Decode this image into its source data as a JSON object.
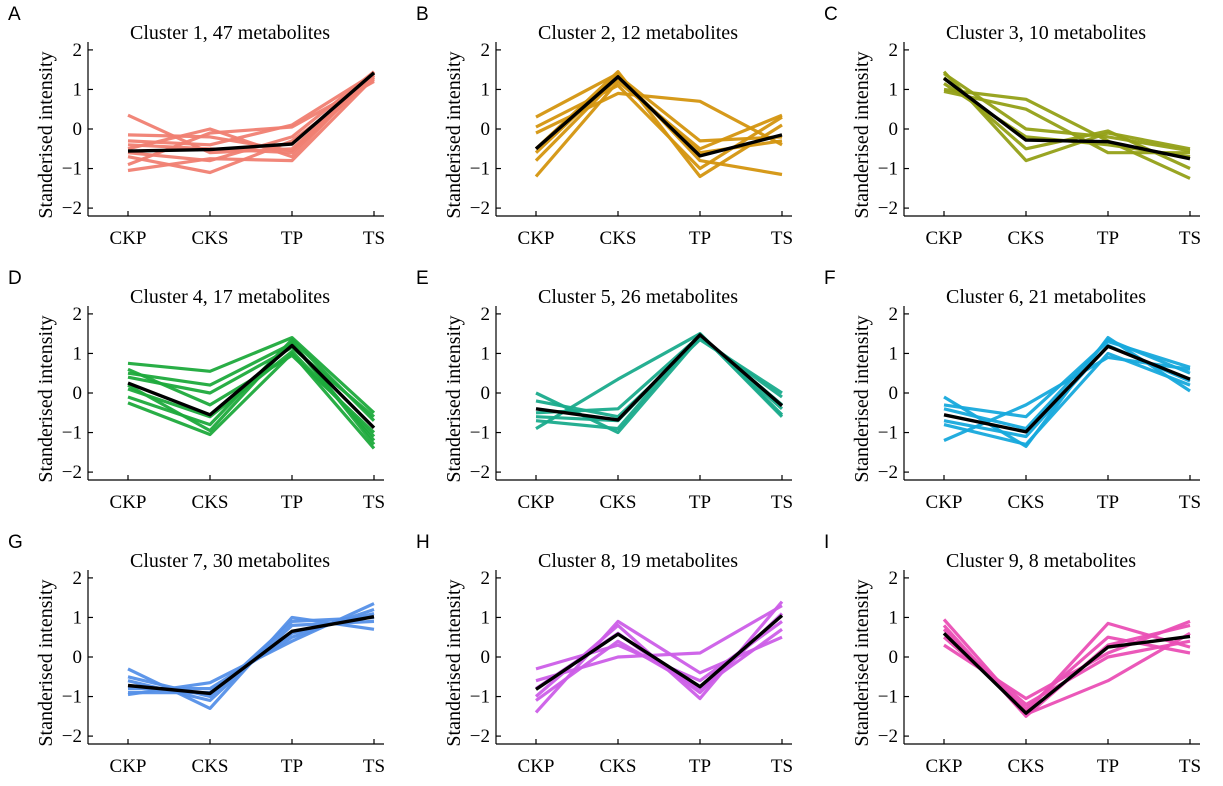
{
  "chart_data": [
    {
      "type": "line",
      "panel": "A",
      "title": "Cluster 1, 47 metabolites",
      "ylabel": "Standerised intensity",
      "xlabel": "",
      "categories": [
        "CKP",
        "CKS",
        "TP",
        "TS"
      ],
      "ylim": [
        -2.2,
        2.2
      ],
      "yticks": [
        -2,
        -1,
        0,
        1,
        2
      ],
      "color": "#f07f72",
      "series": [
        {
          "values": [
            0.35,
            -0.6,
            -0.5,
            1.35
          ]
        },
        {
          "values": [
            -0.15,
            -0.2,
            -0.55,
            1.4
          ]
        },
        {
          "values": [
            -0.9,
            -0.1,
            0.05,
            1.2
          ]
        },
        {
          "values": [
            -1.05,
            -0.75,
            -0.8,
            1.3
          ]
        },
        {
          "values": [
            -0.5,
            0.0,
            -0.7,
            1.45
          ]
        },
        {
          "values": [
            -0.7,
            -1.1,
            -0.3,
            1.25
          ]
        },
        {
          "values": [
            -0.3,
            -0.4,
            0.1,
            1.4
          ]
        },
        {
          "values": [
            -0.6,
            -0.8,
            -0.2,
            1.45
          ]
        },
        {
          "values": [
            -0.4,
            -0.5,
            -0.6,
            1.35
          ]
        }
      ],
      "mean": [
        -0.56,
        -0.52,
        -0.38,
        1.42
      ]
    },
    {
      "type": "line",
      "panel": "B",
      "title": "Cluster 2, 12 metabolites",
      "ylabel": "Standerised intensity",
      "xlabel": "",
      "categories": [
        "CKP",
        "CKS",
        "TP",
        "TS"
      ],
      "ylim": [
        -2.2,
        2.2
      ],
      "yticks": [
        -2,
        -1,
        0,
        1,
        2
      ],
      "color": "#d4950f",
      "series": [
        {
          "values": [
            0.3,
            1.4,
            -0.8,
            -1.15
          ]
        },
        {
          "values": [
            -1.2,
            1.2,
            -0.5,
            0.35
          ]
        },
        {
          "values": [
            -0.1,
            0.9,
            0.7,
            -0.4
          ]
        },
        {
          "values": [
            -0.5,
            1.45,
            -1.2,
            0.1
          ]
        },
        {
          "values": [
            -0.8,
            1.3,
            -0.6,
            -0.3
          ]
        },
        {
          "values": [
            0.05,
            1.1,
            -1.0,
            0.3
          ]
        },
        {
          "values": [
            -0.6,
            1.35,
            -0.3,
            -0.2
          ]
        }
      ],
      "mean": [
        -0.5,
        1.32,
        -0.68,
        -0.15
      ]
    },
    {
      "type": "line",
      "panel": "C",
      "title": "Cluster 3, 10 metabolites",
      "ylabel": "Standerised intensity",
      "xlabel": "",
      "categories": [
        "CKP",
        "CKS",
        "TP",
        "TS"
      ],
      "ylim": [
        -2.2,
        2.2
      ],
      "yticks": [
        -2,
        -1,
        0,
        1,
        2
      ],
      "color": "#93a017",
      "series": [
        {
          "values": [
            1.45,
            -0.8,
            -0.1,
            -0.5
          ]
        },
        {
          "values": [
            1.0,
            0.75,
            -0.3,
            -1.25
          ]
        },
        {
          "values": [
            0.95,
            0.5,
            -0.6,
            -0.6
          ]
        },
        {
          "values": [
            1.3,
            -0.5,
            -0.05,
            -1.0
          ]
        },
        {
          "values": [
            1.15,
            -0.2,
            -0.4,
            -0.7
          ]
        },
        {
          "values": [
            1.4,
            0.0,
            -0.2,
            -0.55
          ]
        }
      ],
      "mean": [
        1.28,
        -0.28,
        -0.32,
        -0.75
      ]
    },
    {
      "type": "line",
      "panel": "D",
      "title": "Cluster 4, 17 metabolites",
      "ylabel": "Standerised intensity",
      "xlabel": "",
      "categories": [
        "CKP",
        "CKS",
        "TP",
        "TS"
      ],
      "ylim": [
        -2.2,
        2.2
      ],
      "yticks": [
        -2,
        -1,
        0,
        1,
        2
      ],
      "color": "#1daa3c",
      "series": [
        {
          "values": [
            0.75,
            0.55,
            1.4,
            -0.5
          ]
        },
        {
          "values": [
            -0.25,
            -1.05,
            1.0,
            -1.4
          ]
        },
        {
          "values": [
            0.5,
            0.2,
            1.25,
            -1.2
          ]
        },
        {
          "values": [
            -0.1,
            -0.8,
            1.35,
            -0.7
          ]
        },
        {
          "values": [
            0.6,
            -0.3,
            0.95,
            -1.0
          ]
        },
        {
          "values": [
            0.2,
            -0.95,
            1.3,
            -1.3
          ]
        },
        {
          "values": [
            0.4,
            0.0,
            1.15,
            -0.6
          ]
        },
        {
          "values": [
            0.1,
            -0.6,
            1.05,
            -1.1
          ]
        }
      ],
      "mean": [
        0.25,
        -0.55,
        1.2,
        -0.88
      ]
    },
    {
      "type": "line",
      "panel": "E",
      "title": "Cluster 5, 26 metabolites",
      "ylabel": "Standerised intensity",
      "xlabel": "",
      "categories": [
        "CKP",
        "CKS",
        "TP",
        "TS"
      ],
      "ylim": [
        -2.2,
        2.2
      ],
      "yticks": [
        -2,
        -1,
        0,
        1,
        2
      ],
      "color": "#1aab8c",
      "series": [
        {
          "values": [
            -0.9,
            0.35,
            1.5,
            -0.55
          ]
        },
        {
          "values": [
            0.0,
            -1.0,
            1.4,
            -0.1
          ]
        },
        {
          "values": [
            -0.5,
            -0.4,
            1.45,
            -0.3
          ]
        },
        {
          "values": [
            -0.7,
            -0.9,
            1.5,
            -0.6
          ]
        },
        {
          "values": [
            -0.2,
            -0.6,
            1.35,
            0.0
          ]
        },
        {
          "values": [
            -0.6,
            -0.7,
            1.45,
            -0.4
          ]
        }
      ],
      "mean": [
        -0.4,
        -0.68,
        1.47,
        -0.32
      ]
    },
    {
      "type": "line",
      "panel": "F",
      "title": "Cluster 6, 21 metabolites",
      "ylabel": "Standerised intensity",
      "xlabel": "",
      "categories": [
        "CKP",
        "CKS",
        "TP",
        "TS"
      ],
      "ylim": [
        -2.2,
        2.2
      ],
      "yticks": [
        -2,
        -1,
        0,
        1,
        2
      ],
      "color": "#17a9dc",
      "series": [
        {
          "values": [
            -0.1,
            -1.35,
            1.4,
            0.05
          ]
        },
        {
          "values": [
            -1.2,
            -0.3,
            0.9,
            0.6
          ]
        },
        {
          "values": [
            -0.7,
            -1.1,
            1.2,
            0.3
          ]
        },
        {
          "values": [
            -0.4,
            -0.9,
            1.35,
            0.5
          ]
        },
        {
          "values": [
            -0.8,
            -1.3,
            1.0,
            0.2
          ]
        },
        {
          "values": [
            -0.3,
            -0.6,
            1.3,
            0.65
          ]
        }
      ],
      "mean": [
        -0.55,
        -0.98,
        1.18,
        0.35
      ]
    },
    {
      "type": "line",
      "panel": "G",
      "title": "Cluster 7, 30 metabolites",
      "ylabel": "Standerised intensity",
      "xlabel": "",
      "categories": [
        "CKP",
        "CKS",
        "TP",
        "TS"
      ],
      "ylim": [
        -2.2,
        2.2
      ],
      "yticks": [
        -2,
        -1,
        0,
        1,
        2
      ],
      "color": "#5590e8",
      "series": [
        {
          "values": [
            -0.3,
            -1.3,
            1.0,
            0.7
          ]
        },
        {
          "values": [
            -0.95,
            -0.65,
            0.4,
            1.35
          ]
        },
        {
          "values": [
            -0.6,
            -1.1,
            0.8,
            0.9
          ]
        },
        {
          "values": [
            -0.8,
            -0.8,
            0.5,
            1.2
          ]
        },
        {
          "values": [
            -0.5,
            -1.0,
            0.9,
            1.0
          ]
        },
        {
          "values": [
            -0.9,
            -0.9,
            0.6,
            1.1
          ]
        }
      ],
      "mean": [
        -0.72,
        -0.92,
        0.65,
        1.02
      ]
    },
    {
      "type": "line",
      "panel": "H",
      "title": "Cluster 8, 19 metabolites",
      "ylabel": "Standerised intensity",
      "xlabel": "",
      "categories": [
        "CKP",
        "CKS",
        "TP",
        "TS"
      ],
      "ylim": [
        -2.2,
        2.2
      ],
      "yticks": [
        -2,
        -1,
        0,
        1,
        2
      ],
      "color": "#cc5ee8",
      "series": [
        {
          "values": [
            -1.4,
            0.9,
            -0.4,
            0.5
          ]
        },
        {
          "values": [
            -0.6,
            0.0,
            0.1,
            1.3
          ]
        },
        {
          "values": [
            -1.0,
            0.8,
            -1.05,
            1.4
          ]
        },
        {
          "values": [
            -0.3,
            0.3,
            -0.6,
            0.9
          ]
        },
        {
          "values": [
            -0.8,
            0.6,
            -0.9,
            1.1
          ]
        },
        {
          "values": [
            -1.1,
            0.4,
            -0.8,
            0.7
          ]
        }
      ],
      "mean": [
        -0.82,
        0.58,
        -0.75,
        1.05
      ]
    },
    {
      "type": "line",
      "panel": "I",
      "title": "Cluster 9, 8 metabolites",
      "ylabel": "Standerised intensity",
      "xlabel": "",
      "categories": [
        "CKP",
        "CKS",
        "TP",
        "TS"
      ],
      "ylim": [
        -2.2,
        2.2
      ],
      "yticks": [
        -2,
        -1,
        0,
        1,
        2
      ],
      "color": "#ea4fb5",
      "series": [
        {
          "values": [
            0.95,
            -1.4,
            0.85,
            0.25
          ]
        },
        {
          "values": [
            0.3,
            -1.05,
            0.1,
            0.9
          ]
        },
        {
          "values": [
            0.7,
            -1.45,
            -0.6,
            0.6
          ]
        },
        {
          "values": [
            0.5,
            -1.3,
            0.5,
            0.1
          ]
        },
        {
          "values": [
            0.8,
            -1.5,
            0.3,
            0.8
          ]
        },
        {
          "values": [
            0.6,
            -1.2,
            0.0,
            0.4
          ]
        }
      ],
      "mean": [
        0.6,
        -1.42,
        0.25,
        0.52
      ]
    }
  ]
}
